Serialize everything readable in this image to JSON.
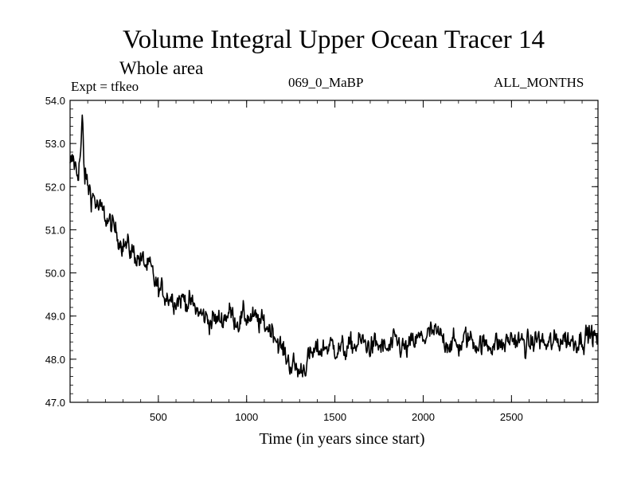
{
  "header": {
    "title": "Volume Integral Upper Ocean Tracer 14",
    "subtitle": "Whole area",
    "expt": "Expt = tfkeo",
    "run": "069_0_MaBP",
    "months": "ALL_MONTHS"
  },
  "chart_data": {
    "type": "line",
    "title": "Volume Integral Upper Ocean Tracer 14",
    "xlabel": "Time (in years since start)",
    "ylabel": "",
    "xlim": [
      0,
      2990
    ],
    "ylim": [
      47.0,
      54.0
    ],
    "x_ticks": [
      500,
      1000,
      1500,
      2000,
      2500
    ],
    "x_tick_labels": [
      "500",
      "1000",
      "1500",
      "2000",
      "2500"
    ],
    "y_ticks": [
      47.0,
      48.0,
      49.0,
      50.0,
      51.0,
      52.0,
      53.0,
      54.0
    ],
    "y_tick_labels": [
      "47.0",
      "48.0",
      "49.0",
      "50.0",
      "51.0",
      "52.0",
      "53.0",
      "54.0"
    ],
    "grid": false,
    "series": [
      {
        "color": "#000000",
        "x": [
          0,
          20,
          40,
          60,
          70,
          80,
          100,
          130,
          160,
          200,
          250,
          300,
          350,
          400,
          450,
          500,
          550,
          600,
          650,
          700,
          750,
          800,
          850,
          900,
          950,
          1000,
          1050,
          1100,
          1150,
          1200,
          1250,
          1300,
          1350,
          1400,
          1450,
          1500,
          1550,
          1600,
          1650,
          1700,
          1750,
          1800,
          1850,
          1900,
          1950,
          2000,
          2050,
          2100,
          2150,
          2200,
          2250,
          2300,
          2350,
          2400,
          2450,
          2500,
          2550,
          2600,
          2650,
          2700,
          2750,
          2800,
          2850,
          2900,
          2950,
          2990
        ],
        "values": [
          52.4,
          52.6,
          52.3,
          52.8,
          53.5,
          52.3,
          52.0,
          51.8,
          51.5,
          51.3,
          51.0,
          50.7,
          50.5,
          50.3,
          50.1,
          49.6,
          49.5,
          49.4,
          49.4,
          49.2,
          49.0,
          48.9,
          48.9,
          49.1,
          48.9,
          49.0,
          48.9,
          48.8,
          48.7,
          48.2,
          47.9,
          47.7,
          48.0,
          48.2,
          48.3,
          48.3,
          48.2,
          48.3,
          48.4,
          48.3,
          48.3,
          48.2,
          48.4,
          48.2,
          48.4,
          48.5,
          48.6,
          48.5,
          48.4,
          48.3,
          48.5,
          48.4,
          48.3,
          48.4,
          48.3,
          48.5,
          48.4,
          48.3,
          48.5,
          48.3,
          48.4,
          48.5,
          48.4,
          48.5,
          48.6,
          48.4
        ]
      }
    ]
  }
}
